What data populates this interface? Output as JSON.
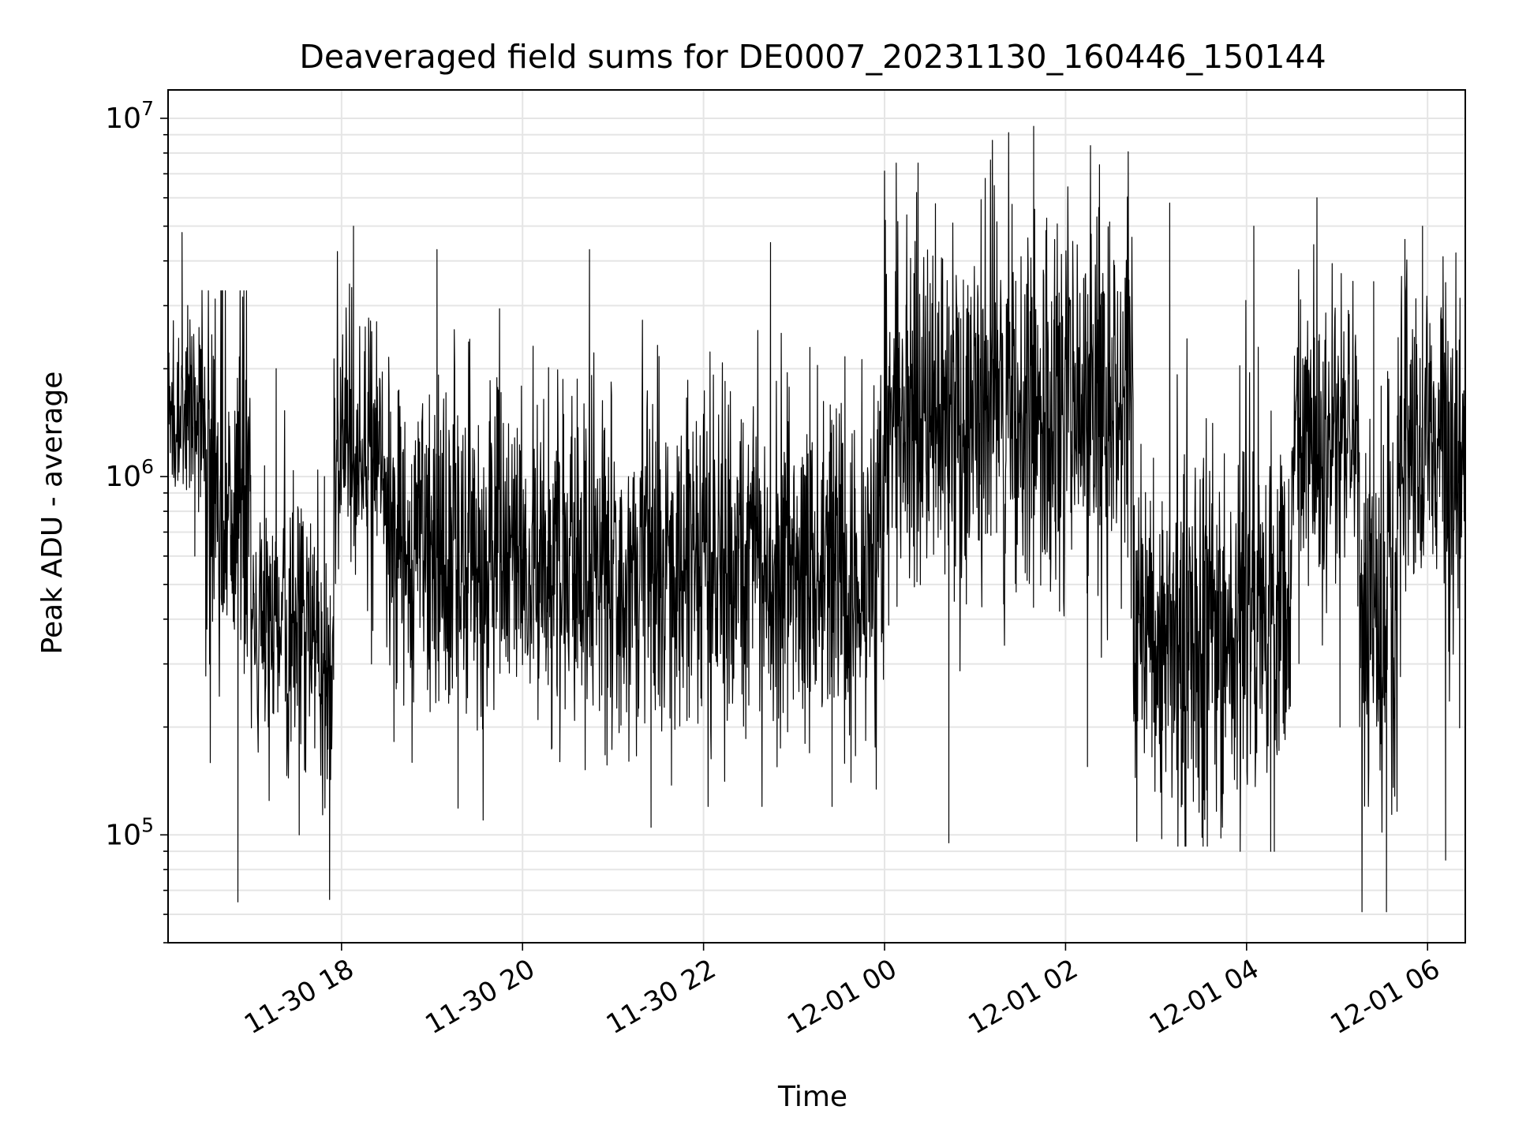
{
  "chart_data": {
    "type": "line",
    "title": "Deaveraged field sums for DE0007_20231130_160446_150144",
    "xlabel": "Time",
    "ylabel": "Peak ADU - average",
    "yscale": "log",
    "xlim": [
      "2023-11-30 16:05",
      "2023-12-01 06:25"
    ],
    "ylim": [
      50000,
      12000000
    ],
    "grid": true,
    "line_color": "#000000",
    "grid_color": "#e5e5e5",
    "x_ticks": [
      {
        "value": "2023-11-30 18:00",
        "label": "11-30 18"
      },
      {
        "value": "2023-11-30 20:00",
        "label": "11-30 20"
      },
      {
        "value": "2023-11-30 22:00",
        "label": "11-30 22"
      },
      {
        "value": "2023-12-01 00:00",
        "label": "12-01 00"
      },
      {
        "value": "2023-12-01 02:00",
        "label": "12-01 02"
      },
      {
        "value": "2023-12-01 04:00",
        "label": "12-01 04"
      },
      {
        "value": "2023-12-01 06:00",
        "label": "12-01 06"
      }
    ],
    "y_ticks": [
      {
        "value": 100000,
        "base": "10",
        "exp": "5"
      },
      {
        "value": 1000000,
        "base": "10",
        "exp": "6"
      },
      {
        "value": 10000000,
        "base": "10",
        "exp": "7"
      }
    ],
    "segments": [
      {
        "start": "2023-11-30 16:05",
        "end": "2023-11-30 16:30",
        "median": 1500000,
        "min": 600000,
        "max": 4800000
      },
      {
        "start": "2023-11-30 16:30",
        "end": "2023-11-30 17:00",
        "median": 800000,
        "min": 65000,
        "max": 3300000
      },
      {
        "start": "2023-11-30 17:00",
        "end": "2023-11-30 17:45",
        "median": 400000,
        "min": 100000,
        "max": 2000000
      },
      {
        "start": "2023-11-30 17:45",
        "end": "2023-11-30 17:55",
        "median": 250000,
        "min": 66000,
        "max": 1000000
      },
      {
        "start": "2023-11-30 17:55",
        "end": "2023-11-30 18:30",
        "median": 1200000,
        "min": 300000,
        "max": 5000000
      },
      {
        "start": "2023-11-30 18:30",
        "end": "2023-11-30 20:00",
        "median": 650000,
        "min": 110000,
        "max": 4300000
      },
      {
        "start": "2023-11-30 20:00",
        "end": "2023-11-30 22:00",
        "median": 550000,
        "min": 105000,
        "max": 4300000
      },
      {
        "start": "2023-11-30 22:00",
        "end": "2023-12-01 00:00",
        "median": 550000,
        "min": 120000,
        "max": 4500000
      },
      {
        "start": "2023-12-01 00:00",
        "end": "2023-12-01 01:00",
        "median": 1500000,
        "min": 95000,
        "max": 7500000
      },
      {
        "start": "2023-12-01 01:00",
        "end": "2023-12-01 02:45",
        "median": 1600000,
        "min": 155000,
        "max": 9500000
      },
      {
        "start": "2023-12-01 02:45",
        "end": "2023-12-01 03:50",
        "median": 350000,
        "min": 93000,
        "max": 5800000
      },
      {
        "start": "2023-12-01 03:50",
        "end": "2023-12-01 04:30",
        "median": 400000,
        "min": 90000,
        "max": 5000000
      },
      {
        "start": "2023-12-01 04:30",
        "end": "2023-12-01 05:15",
        "median": 1200000,
        "min": 200000,
        "max": 6000000
      },
      {
        "start": "2023-12-01 05:15",
        "end": "2023-12-01 05:40",
        "median": 400000,
        "min": 61000,
        "max": 3500000
      },
      {
        "start": "2023-12-01 05:40",
        "end": "2023-12-01 06:25",
        "median": 1200000,
        "min": 85000,
        "max": 5000000
      }
    ]
  }
}
